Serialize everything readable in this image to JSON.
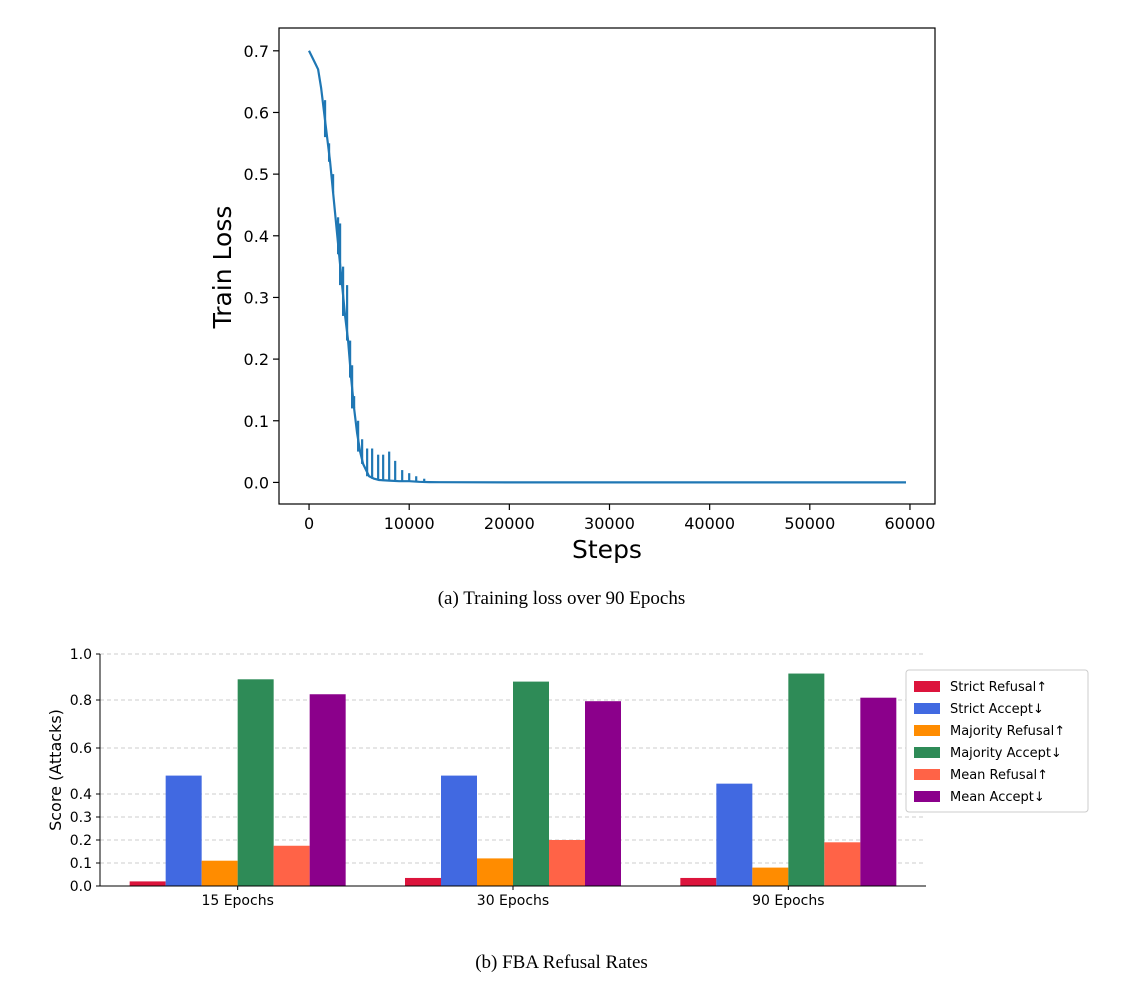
{
  "captions": {
    "a": "(a)  Training loss over 90 Epochs",
    "b": "(b)  FBA Refusal Rates"
  },
  "chart_data": [
    {
      "type": "line",
      "xlabel": "Steps",
      "ylabel": "Train Loss",
      "xlim": [
        -3000,
        62500
      ],
      "ylim": [
        -0.035,
        0.737
      ],
      "xticks": [
        0,
        10000,
        20000,
        30000,
        40000,
        50000,
        60000
      ],
      "yticks": [
        0.0,
        0.1,
        0.2,
        0.3,
        0.4,
        0.5,
        0.6,
        0.7
      ],
      "grid": false,
      "color": "#1f77b4",
      "series": [
        {
          "x": [
            0,
            300,
            600,
            900,
            1200,
            1500,
            1800,
            2100,
            2400,
            2700,
            3000,
            3300,
            3600,
            3900,
            4200,
            4500,
            4800,
            5100,
            5400,
            5700,
            6000,
            6500,
            7000,
            8000,
            9000,
            10000,
            11000,
            12000,
            13000,
            20000,
            30000,
            40000,
            50000,
            59600
          ],
          "y": [
            0.7,
            0.69,
            0.68,
            0.67,
            0.64,
            0.6,
            0.56,
            0.52,
            0.47,
            0.42,
            0.37,
            0.32,
            0.27,
            0.23,
            0.17,
            0.12,
            0.08,
            0.05,
            0.03,
            0.02,
            0.01,
            0.006,
            0.004,
            0.003,
            0.002,
            0.002,
            0.001,
            0.0005,
            0.0003,
            0.0001,
            0.0,
            0.0,
            0.0,
            0.0
          ],
          "spikes": [
            {
              "x": 1600,
              "y": 0.62
            },
            {
              "x": 2000,
              "y": 0.55
            },
            {
              "x": 2400,
              "y": 0.5
            },
            {
              "x": 2900,
              "y": 0.43
            },
            {
              "x": 3100,
              "y": 0.42
            },
            {
              "x": 3400,
              "y": 0.35
            },
            {
              "x": 3800,
              "y": 0.32
            },
            {
              "x": 4100,
              "y": 0.23
            },
            {
              "x": 4300,
              "y": 0.19
            },
            {
              "x": 4500,
              "y": 0.14
            },
            {
              "x": 4900,
              "y": 0.1
            },
            {
              "x": 5300,
              "y": 0.07
            },
            {
              "x": 5800,
              "y": 0.055
            },
            {
              "x": 6300,
              "y": 0.055
            },
            {
              "x": 6900,
              "y": 0.045
            },
            {
              "x": 7400,
              "y": 0.045
            },
            {
              "x": 8000,
              "y": 0.05
            },
            {
              "x": 8600,
              "y": 0.035
            },
            {
              "x": 9300,
              "y": 0.02
            },
            {
              "x": 10000,
              "y": 0.015
            },
            {
              "x": 10700,
              "y": 0.01
            },
            {
              "x": 11500,
              "y": 0.006
            }
          ]
        }
      ]
    },
    {
      "type": "bar",
      "ylabel": "Score (Attacks)",
      "ylim": [
        0,
        1.0
      ],
      "yticks": [
        0.0,
        0.1,
        0.2,
        0.3,
        0.4,
        0.6,
        0.8,
        1.0
      ],
      "ytick_labels": [
        "0.0",
        "0.1",
        "0.2",
        "0.3",
        "0.4",
        "0.6",
        "0.8",
        "1.0"
      ],
      "grid": "y-dashed",
      "legend": "outside-right",
      "categories": [
        "15 Epochs",
        "30 Epochs",
        "90 Epochs"
      ],
      "series": [
        {
          "name": "Strict Refusal↑",
          "color": "#dc143c",
          "values": [
            0.02,
            0.035,
            0.035
          ]
        },
        {
          "name": "Strict Accept↓",
          "color": "#4169e1",
          "values": [
            0.48,
            0.48,
            0.445
          ]
        },
        {
          "name": "Majority Refusal↑",
          "color": "#ff8c00",
          "values": [
            0.11,
            0.12,
            0.08
          ]
        },
        {
          "name": "Majority Accept↓",
          "color": "#2e8b57",
          "values": [
            0.89,
            0.88,
            0.915
          ]
        },
        {
          "name": "Mean Refusal↑",
          "color": "#ff6347",
          "values": [
            0.175,
            0.2,
            0.19
          ]
        },
        {
          "name": "Mean Accept↓",
          "color": "#8b008b",
          "values": [
            0.825,
            0.795,
            0.81
          ]
        }
      ]
    }
  ]
}
